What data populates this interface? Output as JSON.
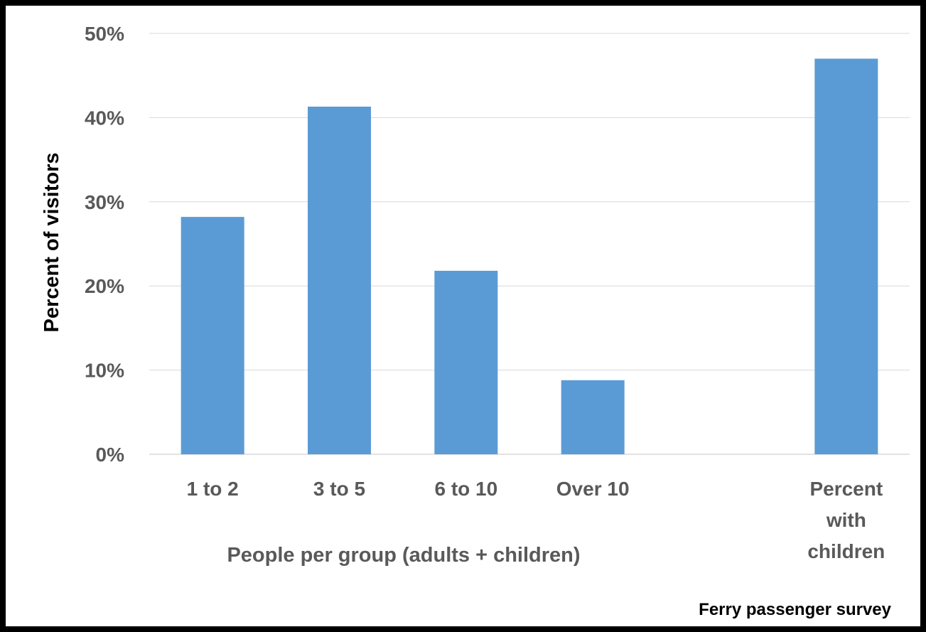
{
  "chart_data": {
    "type": "bar",
    "categories": [
      "1 to 2",
      "3 to 5",
      "6 to 10",
      "Over 10",
      "",
      "Percent with children"
    ],
    "category_lines": [
      [
        "1 to 2"
      ],
      [
        "3 to 5"
      ],
      [
        "6 to 10"
      ],
      [
        "Over 10"
      ],
      [],
      [
        "Percent",
        "with",
        "children"
      ]
    ],
    "values": [
      28.2,
      41.3,
      21.8,
      8.8,
      null,
      47.0
    ],
    "ylim": [
      0,
      50
    ],
    "yticks": [
      0,
      10,
      20,
      30,
      40,
      50
    ],
    "ytick_labels": [
      "0%",
      "10%",
      "20%",
      "30%",
      "40%",
      "50%"
    ],
    "ylabel": "Percent of visitors",
    "xlabel": "People per group (adults + children)",
    "title": "",
    "grid": true,
    "legend": "none",
    "colors": {
      "bar": "#5b9bd5",
      "grid": "#d9d9d9",
      "tick_text": "#595959",
      "ylabel_text": "#000000",
      "xlabel_text": "#595959"
    }
  },
  "source_note": "Ferry passenger survey"
}
